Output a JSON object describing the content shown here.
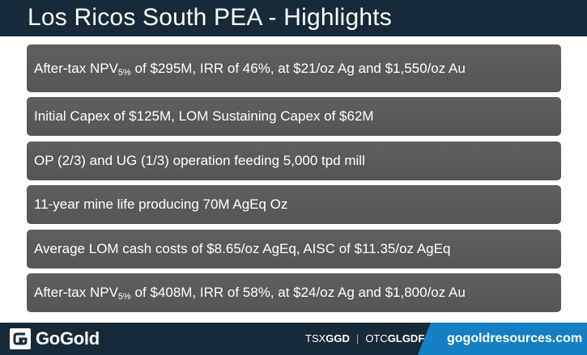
{
  "header": {
    "title": "Los Ricos South PEA - Highlights"
  },
  "bullets": [
    {
      "pre": "After-tax NPV",
      "sub": "5%",
      "post": " of $295M, IRR of 46%, at $21/oz Ag and $1,550/oz Au"
    },
    {
      "text": "Initial Capex of $125M, LOM Sustaining Capex of $62M"
    },
    {
      "text": "OP (2/3) and UG (1/3) operation feeding 5,000 tpd mill"
    },
    {
      "text": "11-year mine life producing 70M AgEq Oz"
    },
    {
      "text": "Average LOM cash costs of $8.65/oz AgEq, AISC of $11.35/oz AgEq"
    },
    {
      "pre": "After-tax NPV",
      "sub": "5%",
      "post": " of $408M, IRR of 58%, at $24/oz Ag and $1,800/oz Au"
    }
  ],
  "footer": {
    "logo_text": "GoGold",
    "logo_icon": "gogold-g-mark-icon",
    "tsx_prefix": "TSX",
    "tsx_symbol": "GGD",
    "separator": "|",
    "otc_prefix": "OTC",
    "otc_symbol": "GLGDF",
    "website": "gogoldresources.com",
    "accent_color": "#1580c4"
  },
  "colors": {
    "navy": "#172a39",
    "bullet_bg": "#5a5a5a",
    "text": "#ffffff"
  }
}
